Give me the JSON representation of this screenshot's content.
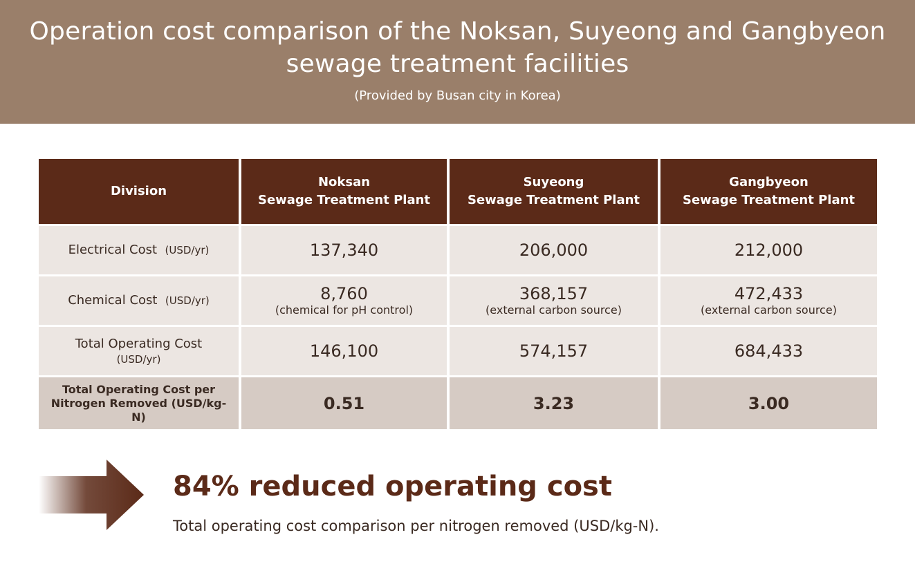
{
  "header": {
    "title_line1": "Operation cost comparison of the Noksan, Suyeong and Gangbyeon",
    "title_line2": "sewage treatment facilities",
    "subtitle": "(Provided by Busan city in Korea)"
  },
  "chart_data": {
    "type": "table",
    "columns": [
      {
        "line1": "Division",
        "line2": ""
      },
      {
        "line1": "Noksan",
        "line2": "Sewage Treatment Plant"
      },
      {
        "line1": "Suyeong",
        "line2": "Sewage Treatment Plant"
      },
      {
        "line1": "Gangbyeon",
        "line2": "Sewage Treatment Plant"
      }
    ],
    "rows": [
      {
        "label": "Electrical Cost",
        "unit": "(USD/yr)",
        "values": [
          "137,340",
          "206,000",
          "212,000"
        ],
        "notes": [
          "",
          "",
          ""
        ]
      },
      {
        "label": "Chemical Cost",
        "unit": "(USD/yr)",
        "values": [
          "8,760",
          "368,157",
          "472,433"
        ],
        "notes": [
          "(chemical for pH control)",
          "(external carbon source)",
          "(external carbon source)"
        ]
      },
      {
        "label": "Total Operating Cost",
        "unit": "(USD/yr)",
        "values": [
          "146,100",
          "574,157",
          "684,433"
        ],
        "notes": [
          "",
          "",
          ""
        ]
      },
      {
        "label_line1": "Total Operating Cost per",
        "label_line2": "Nitrogen Removed (USD/kg-",
        "label_line3": "N)",
        "values": [
          "0.51",
          "3.23",
          "3.00"
        ],
        "highlight": true
      }
    ]
  },
  "summary": {
    "headline": "84% reduced operating cost",
    "caption": "Total operating cost comparison per nitrogen removed (USD/kg-N)."
  },
  "colors": {
    "banner": "#9a7f6a",
    "header_fill": "#5b2a18",
    "row_fill": "#ece6e2",
    "highlight_row_fill": "#d6cbc4",
    "accent_text": "#5b2a18"
  },
  "icons": {
    "arrow": "right-arrow-icon"
  }
}
